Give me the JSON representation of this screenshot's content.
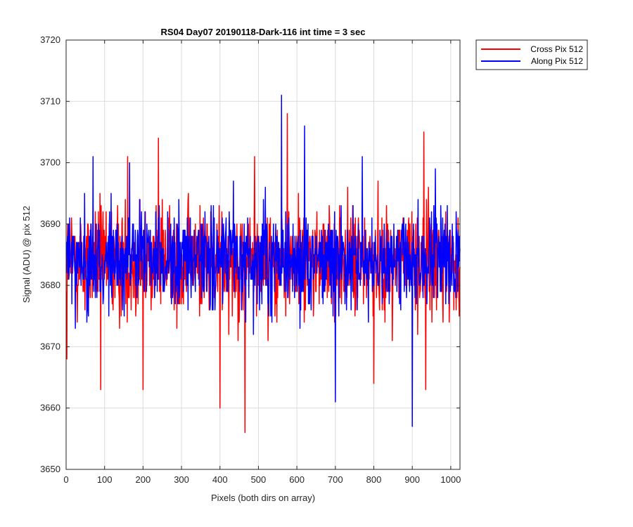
{
  "chart_data": {
    "type": "line",
    "title": "RS04 Day07 20190118-Dark-116 int time = 3 sec",
    "xlabel": "Pixels (both dirs on array)",
    "ylabel": "Signal (ADU) @ pix 512",
    "xlim": [
      0,
      1024
    ],
    "ylim": [
      3650,
      3720
    ],
    "xticks": [
      0,
      100,
      200,
      300,
      400,
      500,
      600,
      700,
      800,
      900,
      1000
    ],
    "yticks": [
      3650,
      3660,
      3670,
      3680,
      3690,
      3700,
      3710,
      3720
    ],
    "grid": true,
    "legend_position": "outside top-right",
    "series": [
      {
        "name": "Cross Pix 512",
        "color": "#ff0000",
        "x_range": [
          1,
          1024
        ],
        "mean": 3684,
        "spread": 5.5,
        "notable_points": [
          [
            2,
            3668
          ],
          [
            90,
            3663
          ],
          [
            160,
            3701
          ],
          [
            200,
            3663
          ],
          [
            240,
            3704
          ],
          [
            400,
            3660
          ],
          [
            465,
            3656
          ],
          [
            490,
            3701
          ],
          [
            525,
            3671
          ],
          [
            575,
            3708
          ],
          [
            800,
            3664
          ],
          [
            930,
            3705
          ],
          [
            935,
            3663
          ]
        ]
      },
      {
        "name": "Along Pix 512",
        "color": "#0000ff",
        "x_range": [
          1,
          1024
        ],
        "mean": 3684,
        "spread": 5,
        "notable_points": [
          [
            70,
            3701
          ],
          [
            165,
            3700
          ],
          [
            560,
            3711
          ],
          [
            620,
            3706
          ],
          [
            700,
            3661
          ],
          [
            770,
            3701
          ],
          [
            900,
            3657
          ],
          [
            960,
            3699
          ]
        ]
      }
    ]
  }
}
